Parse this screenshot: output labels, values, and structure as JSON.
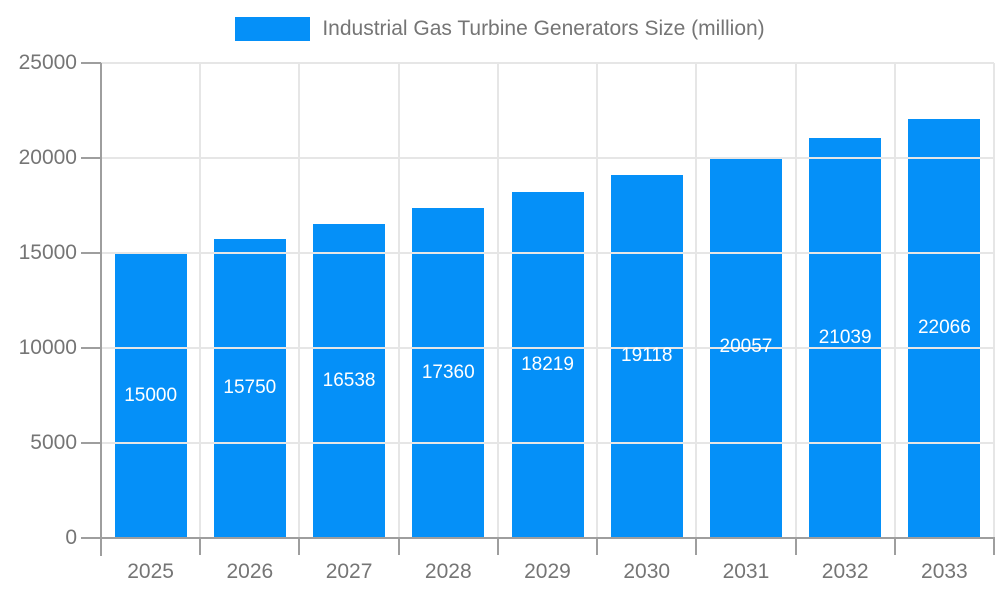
{
  "legend": {
    "label": "Industrial Gas Turbine Generators Size (million)"
  },
  "chart_data": {
    "type": "bar",
    "title": "Industrial Gas Turbine Generators Size (million)",
    "categories": [
      "2025",
      "2026",
      "2027",
      "2028",
      "2029",
      "2030",
      "2031",
      "2032",
      "2033"
    ],
    "series": [
      {
        "name": "Industrial Gas Turbine Generators Size (million)",
        "values": [
          15000,
          15750,
          16538,
          17360,
          18219,
          19118,
          20057,
          21039,
          22066
        ]
      }
    ],
    "xlabel": "",
    "ylabel": "",
    "ylim": [
      0,
      25000
    ],
    "yticks": [
      0,
      5000,
      10000,
      15000,
      20000,
      25000
    ],
    "grid": true,
    "gridlines": "horizontal at every 5000 and vertical at category boundaries",
    "legend_position": "top-center",
    "value_labels": "inside bars, centered, white"
  },
  "colors": {
    "bar": "#0590f8",
    "grid": "#e6e6e6",
    "axis": "#9e9e9e",
    "tick_text": "#757575",
    "legend_text": "#757575",
    "value_label_text": "#ffffff",
    "background": "#ffffff"
  }
}
